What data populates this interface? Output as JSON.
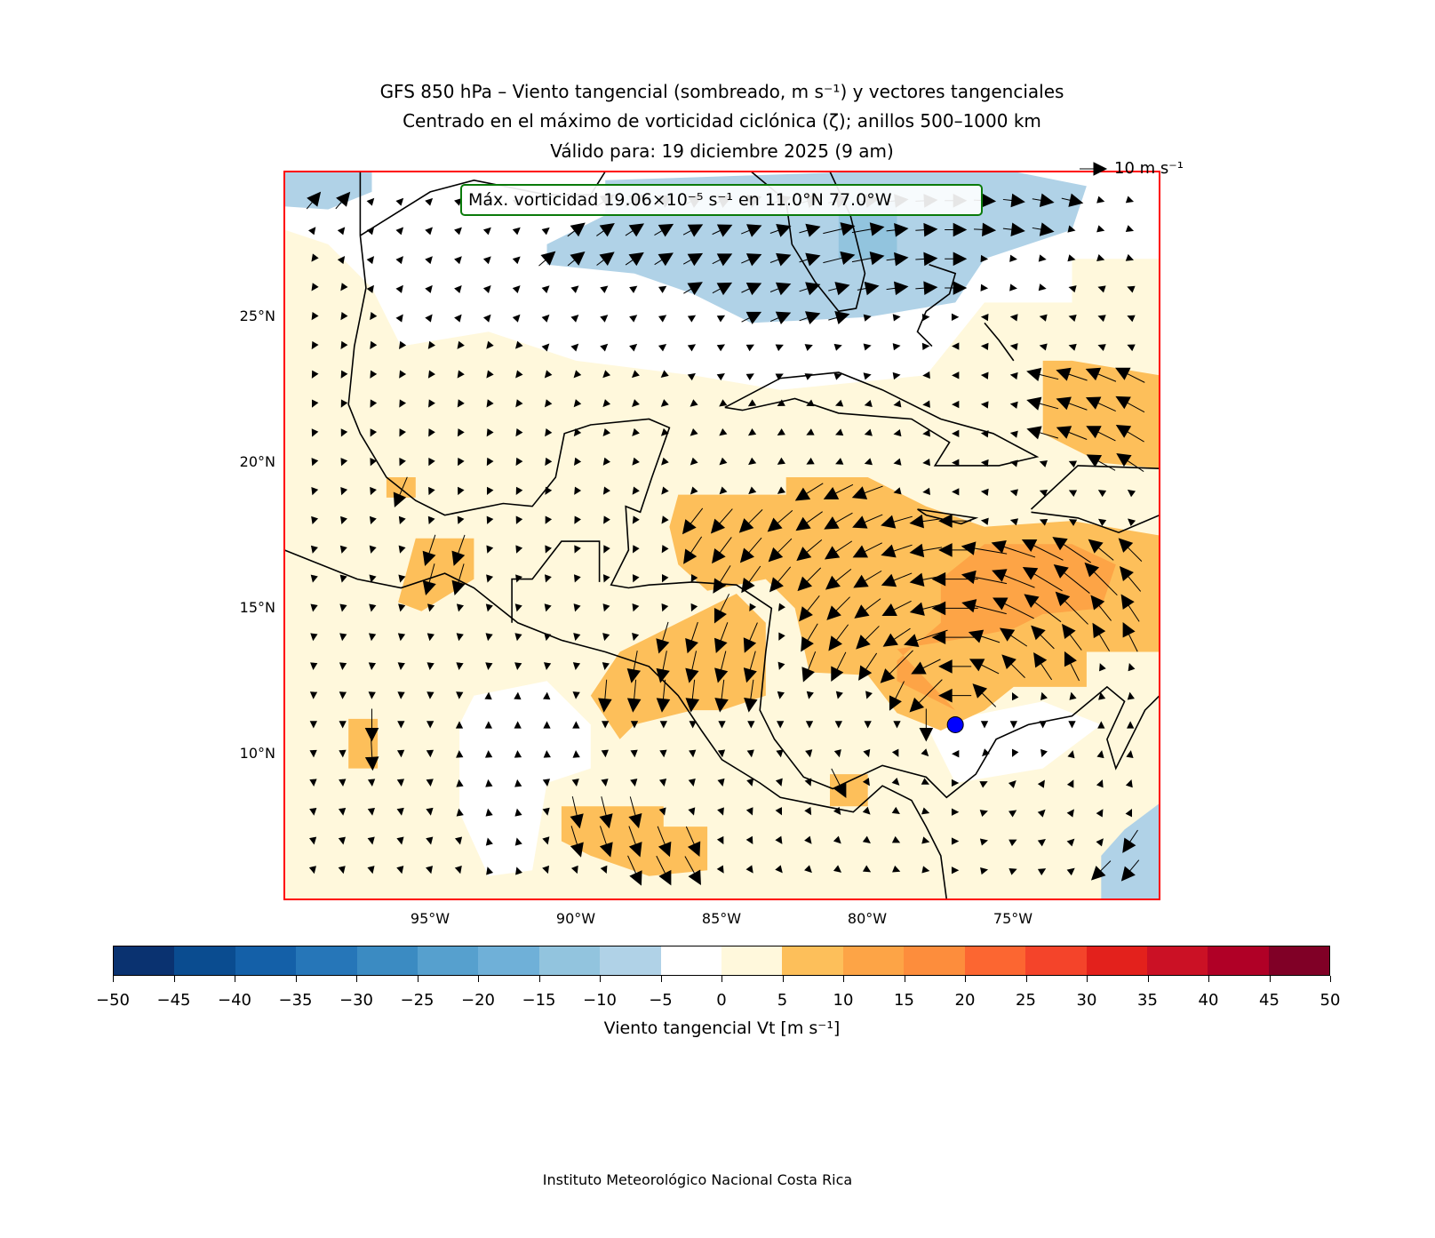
{
  "title": {
    "line1": "GFS 850 hPa – Viento tangencial (sombreado, m s⁻¹) y vectores tangenciales",
    "line2": "Centrado en el máximo de vorticidad ciclónica (ζ); anillos 500–1000 km",
    "line3": "Válido para: 19 diciembre 2025 (9 am)"
  },
  "annotation": "Máx. vorticidad 19.06×10⁻⁵ s⁻¹ en 11.0°N 77.0°W",
  "vector_reference": {
    "label": "10 m s⁻¹",
    "value": 10
  },
  "vorticity_max": {
    "lat": 11.0,
    "lon": -77.0
  },
  "map": {
    "extent": {
      "lon_min": -100,
      "lon_max": -70,
      "lat_min": 5,
      "lat_max": 30
    },
    "lon_ticks": [
      {
        "value": -95,
        "label": "95°W"
      },
      {
        "value": -90,
        "label": "90°W"
      },
      {
        "value": -85,
        "label": "85°W"
      },
      {
        "value": -80,
        "label": "80°W"
      },
      {
        "value": -75,
        "label": "75°W"
      }
    ],
    "lat_ticks": [
      {
        "value": 25,
        "label": "25°N"
      },
      {
        "value": 20,
        "label": "20°N"
      },
      {
        "value": 15,
        "label": "15°N"
      },
      {
        "value": 10,
        "label": "10°N"
      }
    ]
  },
  "colorbar": {
    "label": "Viento tangencial Vt [m s⁻¹]",
    "ticks": [
      "−50",
      "−45",
      "−40",
      "−35",
      "−30",
      "−25",
      "−20",
      "−15",
      "−10",
      "−5",
      "0",
      "5",
      "10",
      "15",
      "20",
      "25",
      "30",
      "35",
      "40",
      "45",
      "50"
    ],
    "colors": [
      "#0a3270",
      "#0a4c90",
      "#1460a8",
      "#2676b8",
      "#3b8bc2",
      "#56a0ce",
      "#6fb0d8",
      "#92c4de",
      "#b0d2e7",
      "#ffffff",
      "#fff8dc",
      "#fdbf5a",
      "#fda446",
      "#fd8d3c",
      "#fc6631",
      "#f4442a",
      "#e3211c",
      "#cb1125",
      "#b00026",
      "#800026"
    ]
  },
  "footer": "Instituto Meteorológico Nacional Costa Rica"
}
